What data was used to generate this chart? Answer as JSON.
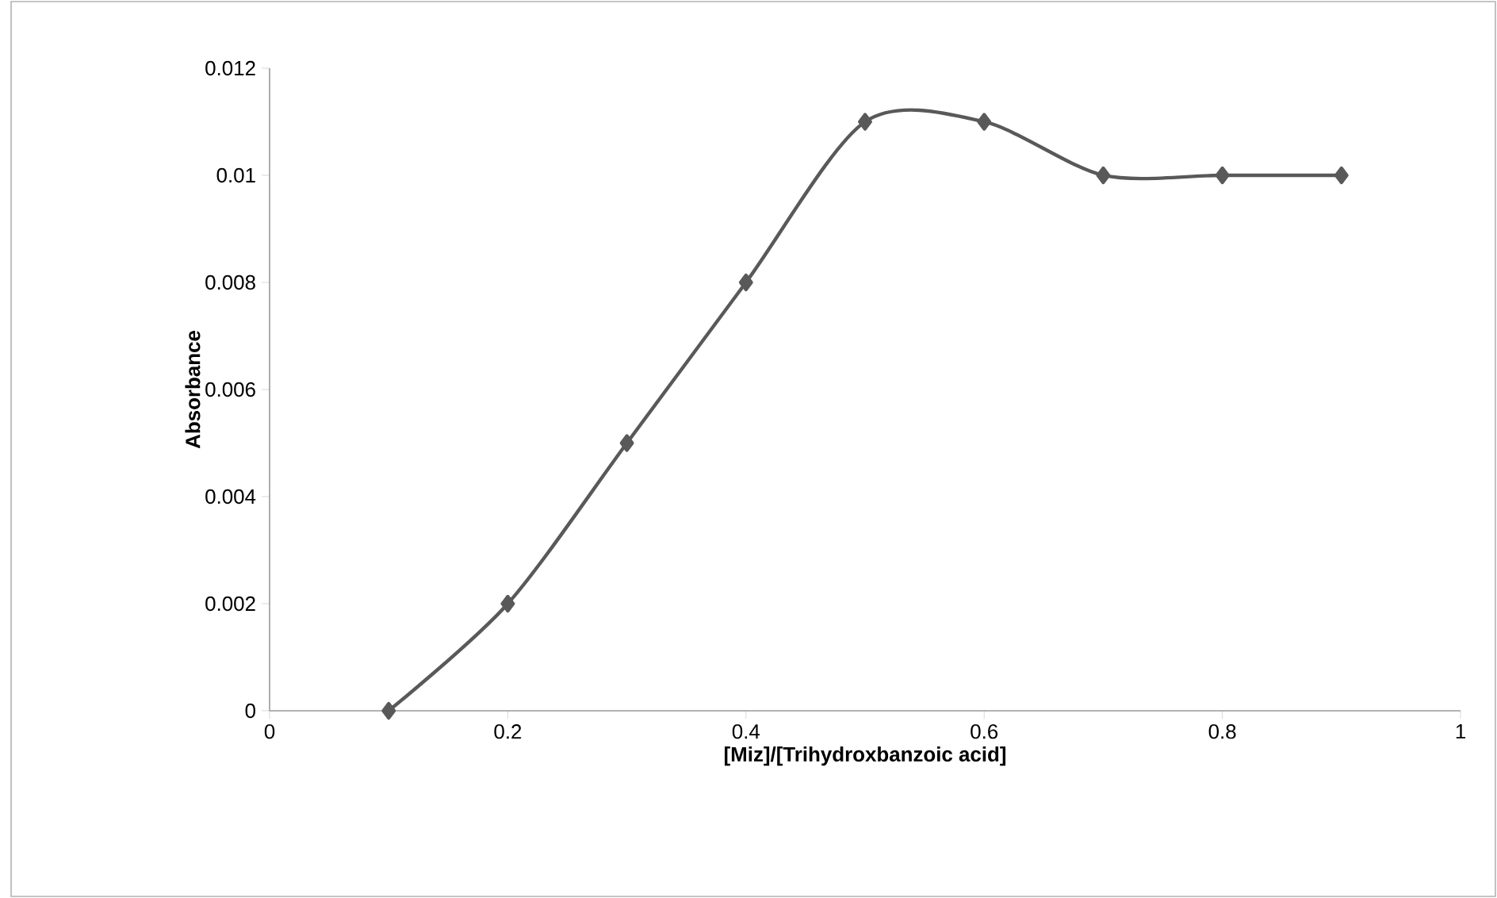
{
  "chart_data": {
    "type": "line",
    "xlabel": "[Miz]/[Trihydroxbanzoic acid]",
    "ylabel": "Absorbance",
    "x": [
      0.1,
      0.2,
      0.3,
      0.4,
      0.5,
      0.6,
      0.7,
      0.8,
      0.9
    ],
    "series": [
      {
        "color": "#595959",
        "values": [
          0,
          0.002,
          0.005,
          0.008,
          0.011,
          0.011,
          0.01,
          0.01,
          0.01
        ]
      }
    ],
    "xlim": [
      0,
      1
    ],
    "xticks": [
      0,
      0.2,
      0.4,
      0.6,
      0.8,
      1
    ],
    "ylim": [
      0,
      0.012
    ],
    "yticks": [
      0,
      0.002,
      0.004,
      0.006,
      0.008,
      0.01,
      0.012
    ],
    "marker": "diamond",
    "line_style": "solid",
    "grid": false
  }
}
